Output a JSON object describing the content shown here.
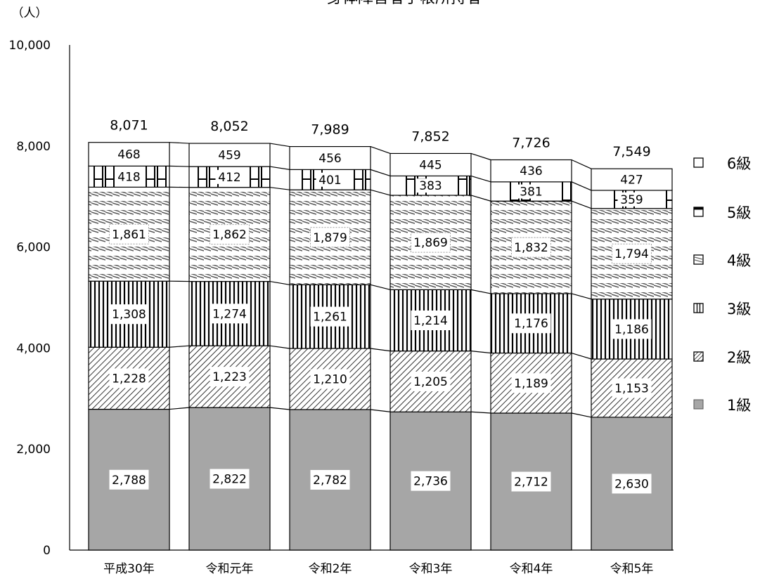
{
  "chart_data": {
    "type": "bar",
    "stacked": true,
    "title": "身体障害者手帳所持者",
    "yunit": "（人）",
    "ylim": [
      0,
      10000
    ],
    "yticks": [
      0,
      2000,
      4000,
      6000,
      8000,
      10000
    ],
    "ytick_labels": [
      "0",
      "2,000",
      "4,000",
      "6,000",
      "8,000",
      "10,000"
    ],
    "categories": [
      "平成30年",
      "令和元年",
      "令和2年",
      "令和3年",
      "令和4年",
      "令和5年"
    ],
    "series": [
      {
        "name": "1級",
        "values": [
          2788,
          2822,
          2782,
          2736,
          2712,
          2630
        ],
        "labels": [
          "2,788",
          "2,822",
          "2,782",
          "2,736",
          "2,712",
          "2,630"
        ],
        "pattern": "solid-gray",
        "color": "#a6a6a6"
      },
      {
        "name": "2級",
        "values": [
          1228,
          1223,
          1210,
          1205,
          1189,
          1153
        ],
        "labels": [
          "1,228",
          "1,223",
          "1,210",
          "1,205",
          "1,189",
          "1,153"
        ],
        "pattern": "diagonal-hatch"
      },
      {
        "name": "3級",
        "values": [
          1308,
          1274,
          1261,
          1214,
          1176,
          1186
        ],
        "labels": [
          "1,308",
          "1,274",
          "1,261",
          "1,214",
          "1,176",
          "1,186"
        ],
        "pattern": "vertical-lines"
      },
      {
        "name": "4級",
        "values": [
          1861,
          1862,
          1879,
          1869,
          1832,
          1794
        ],
        "labels": [
          "1,861",
          "1,862",
          "1,879",
          "1,869",
          "1,832",
          "1,794"
        ],
        "pattern": "dash-stripes"
      },
      {
        "name": "5級",
        "values": [
          418,
          412,
          401,
          383,
          381,
          359
        ],
        "labels": [
          "418",
          "412",
          "401",
          "383",
          "381",
          "359"
        ],
        "pattern": "grid-box"
      },
      {
        "name": "6級",
        "values": [
          468,
          459,
          456,
          445,
          436,
          427
        ],
        "labels": [
          "468",
          "459",
          "456",
          "445",
          "436",
          "427"
        ],
        "pattern": "white"
      }
    ],
    "totals": [
      8071,
      8052,
      7989,
      7852,
      7726,
      7549
    ],
    "total_labels": [
      "8,071",
      "8,052",
      "7,989",
      "7,852",
      "7,726",
      "7,549"
    ],
    "legend": {
      "placement": "right",
      "order": [
        "6級",
        "5級",
        "4級",
        "3級",
        "2級",
        "1級"
      ]
    },
    "series_lines": true,
    "grid": false
  }
}
